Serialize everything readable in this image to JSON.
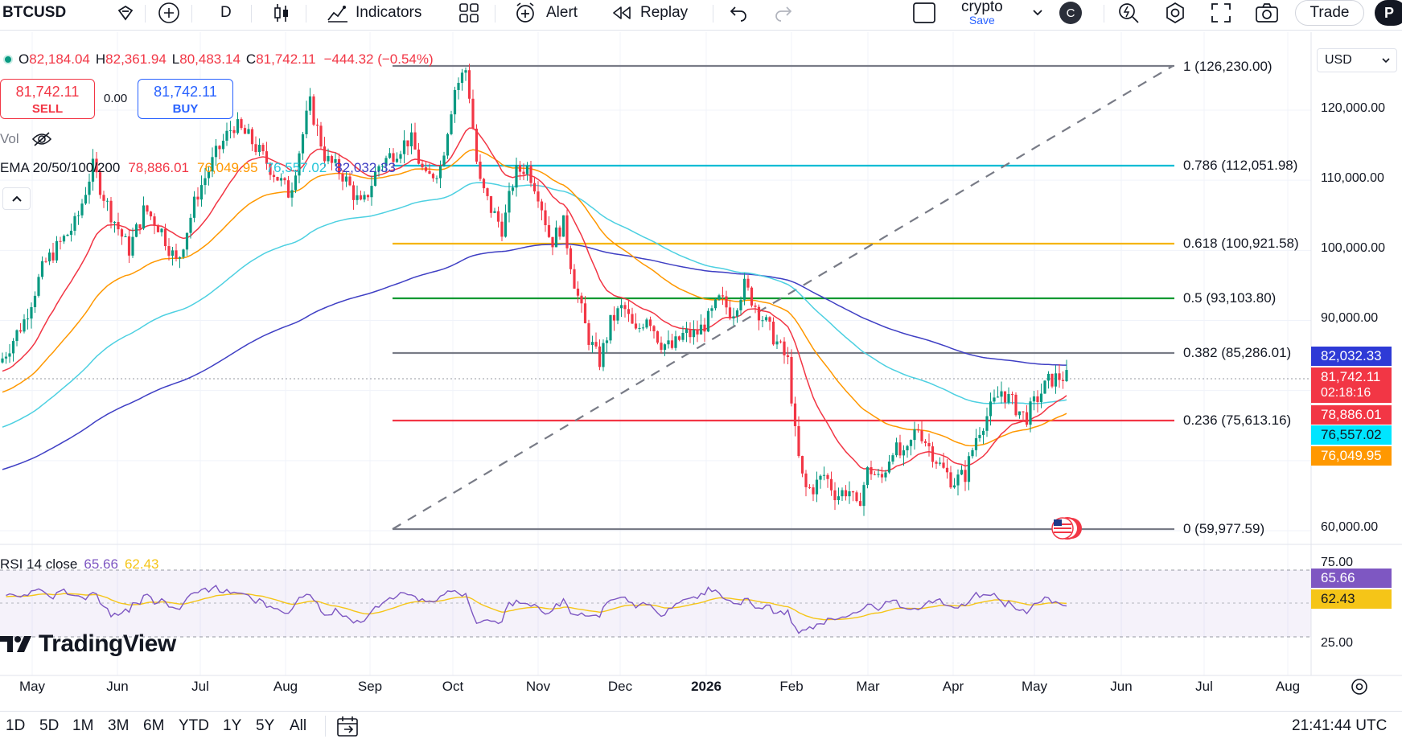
{
  "toolbar": {
    "symbol": "BTCUSD",
    "interval": "D",
    "indicators_label": "Indicators",
    "alert_label": "Alert",
    "replay_label": "Replay",
    "layout_name": "crypto",
    "layout_save": "Save",
    "avatar_letter": "C",
    "trade_label": "Trade",
    "publish_partial": "P"
  },
  "legend": {
    "open_k": "O",
    "open": "82,184.04",
    "high_k": "H",
    "high": "82,361.94",
    "low_k": "L",
    "low": "80,483.14",
    "close_k": "C",
    "close": "81,742.11",
    "change": "−444.32 (−0.54%)",
    "sell_price": "81,742.11",
    "sell_label": "SELL",
    "spread": "0.00",
    "buy_price": "81,742.11",
    "buy_label": "BUY",
    "vol_label": "Vol",
    "ema_label": "EMA 20/50/100/200",
    "ema20": "78,886.01",
    "ema50": "76,049.95",
    "ema100": "76,557.02",
    "ema200": "82,032.33",
    "rsi_label": "RSI 14 close",
    "rsi_value": "65.66",
    "rsi_ma": "62.43"
  },
  "colors": {
    "ema20": "#f23645",
    "ema50": "#ff9800",
    "ema100": "#4dd0e1",
    "ema200": "#3f3fc4",
    "up": "#089981",
    "down": "#f23645",
    "rsi": "#7e57c2",
    "rsi_ma": "#f5c518"
  },
  "price_scale": {
    "currency": "USD",
    "ticks": [
      "120,000.00",
      "110,000.00",
      "100,000.00",
      "90,000.00",
      "60,000.00"
    ],
    "ema200_box": "82,032.33",
    "last_price_box": "81,742.11",
    "countdown": "02:18:16",
    "ema20_box": "78,886.01",
    "ema100_box": "76,557.02",
    "ema50_box": "76,049.95"
  },
  "rsi_scale": {
    "upper": "75.00",
    "lower": "25.00",
    "value": "65.66",
    "ma": "62.43"
  },
  "fib": [
    {
      "label": "1 (126,230.00)",
      "color": "#787b86"
    },
    {
      "label": "0.786 (112,051.98)",
      "color": "#00bcd4"
    },
    {
      "label": "0.618 (100,921.58)",
      "color": "#f5b400"
    },
    {
      "label": "0.5 (93,103.80)",
      "color": "#089931"
    },
    {
      "label": "0.382 (85,286.01)",
      "color": "#787b86"
    },
    {
      "label": "0.236 (75,613.16)",
      "color": "#f23645"
    },
    {
      "label": "0 (59,977.59)",
      "color": "#787b86"
    }
  ],
  "time_axis": [
    "May",
    "Jun",
    "Jul",
    "Aug",
    "Sep",
    "Oct",
    "Nov",
    "Dec",
    "2026",
    "Feb",
    "Mar",
    "Apr",
    "May",
    "Jun",
    "Jul",
    "Aug"
  ],
  "bottom": {
    "ranges": [
      "1D",
      "5D",
      "1M",
      "3M",
      "6M",
      "YTD",
      "1Y",
      "5Y",
      "All"
    ],
    "clock": "21:41:44 UTC"
  },
  "watermark": "TradingView"
}
